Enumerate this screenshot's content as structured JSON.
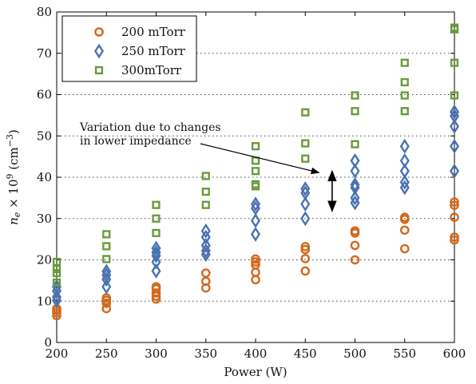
{
  "chart_data": {
    "type": "scatter",
    "title": "",
    "xlabel": "Power (W)",
    "ylabel": {
      "base": "n",
      "sub": "e",
      "mid": " × 10",
      "sup": "9",
      "unit_open": " (cm",
      "unit_sup": "−3",
      "unit_close": ")"
    },
    "xlim": [
      200,
      600
    ],
    "ylim": [
      0,
      80
    ],
    "x_ticks": [
      "200",
      "250",
      "300",
      "350",
      "400",
      "450",
      "500",
      "550",
      "600"
    ],
    "y_ticks": [
      "0",
      "10",
      "20",
      "30",
      "40",
      "50",
      "60",
      "70",
      "80"
    ],
    "grid": "horizontal-dotted",
    "legend_position": "top-left",
    "series": [
      {
        "name": "200 mTorr",
        "marker": "circle",
        "color": "#d2691e",
        "points": [
          [
            200,
            6.5
          ],
          [
            200,
            7.2
          ],
          [
            200,
            7.8
          ],
          [
            200,
            8.2
          ],
          [
            250,
            8.2
          ],
          [
            250,
            9.5
          ],
          [
            250,
            10.2
          ],
          [
            250,
            10.8
          ],
          [
            300,
            10.5
          ],
          [
            300,
            11.2
          ],
          [
            300,
            12.0
          ],
          [
            300,
            13.0
          ],
          [
            300,
            13.5
          ],
          [
            350,
            13.2
          ],
          [
            350,
            14.8
          ],
          [
            350,
            16.8
          ],
          [
            400,
            15.2
          ],
          [
            400,
            17.0
          ],
          [
            400,
            18.8
          ],
          [
            400,
            19.5
          ],
          [
            400,
            20.2
          ],
          [
            450,
            17.3
          ],
          [
            450,
            20.3
          ],
          [
            450,
            22.5
          ],
          [
            450,
            23.2
          ],
          [
            500,
            20.0
          ],
          [
            500,
            23.5
          ],
          [
            500,
            26.5
          ],
          [
            500,
            27.0
          ],
          [
            550,
            22.7
          ],
          [
            550,
            27.2
          ],
          [
            550,
            29.8
          ],
          [
            550,
            30.3
          ],
          [
            600,
            24.8
          ],
          [
            600,
            25.5
          ],
          [
            600,
            30.3
          ],
          [
            600,
            33.2
          ],
          [
            600,
            34.0
          ]
        ]
      },
      {
        "name": "250 mTorr",
        "marker": "diamond",
        "color": "#4a72b0",
        "points": [
          [
            200,
            10.2
          ],
          [
            200,
            11.0
          ],
          [
            200,
            12.5
          ],
          [
            200,
            13.5
          ],
          [
            250,
            13.5
          ],
          [
            250,
            15.3
          ],
          [
            250,
            16.3
          ],
          [
            250,
            17.2
          ],
          [
            300,
            17.3
          ],
          [
            300,
            19.5
          ],
          [
            300,
            21.0
          ],
          [
            300,
            21.8
          ],
          [
            300,
            22.8
          ],
          [
            350,
            21.3
          ],
          [
            350,
            22.2
          ],
          [
            350,
            23.5
          ],
          [
            350,
            25.5
          ],
          [
            350,
            27.0
          ],
          [
            400,
            26.2
          ],
          [
            400,
            29.5
          ],
          [
            400,
            32.5
          ],
          [
            400,
            33.5
          ],
          [
            450,
            30.0
          ],
          [
            450,
            33.5
          ],
          [
            450,
            36.2
          ],
          [
            450,
            37.2
          ],
          [
            500,
            33.8
          ],
          [
            500,
            35.0
          ],
          [
            500,
            37.5
          ],
          [
            500,
            38.2
          ],
          [
            500,
            41.5
          ],
          [
            500,
            44.0
          ],
          [
            550,
            37.5
          ],
          [
            550,
            38.8
          ],
          [
            550,
            41.5
          ],
          [
            550,
            44.0
          ],
          [
            550,
            47.5
          ],
          [
            600,
            41.5
          ],
          [
            600,
            47.5
          ],
          [
            600,
            52.3
          ],
          [
            600,
            54.8
          ],
          [
            600,
            55.8
          ]
        ]
      },
      {
        "name": "300mTorr",
        "marker": "square",
        "color": "#6a9a3a",
        "points": [
          [
            200,
            14.5
          ],
          [
            200,
            16.8
          ],
          [
            200,
            17.8
          ],
          [
            200,
            19.5
          ],
          [
            250,
            20.2
          ],
          [
            250,
            23.3
          ],
          [
            250,
            26.2
          ],
          [
            300,
            26.5
          ],
          [
            300,
            30.0
          ],
          [
            300,
            33.3
          ],
          [
            350,
            33.3
          ],
          [
            350,
            36.5
          ],
          [
            350,
            40.3
          ],
          [
            400,
            37.8
          ],
          [
            400,
            38.3
          ],
          [
            400,
            41.5
          ],
          [
            400,
            44.0
          ],
          [
            400,
            47.5
          ],
          [
            450,
            44.5
          ],
          [
            450,
            48.2
          ],
          [
            450,
            55.7
          ],
          [
            500,
            48.0
          ],
          [
            500,
            56.0
          ],
          [
            500,
            59.8
          ],
          [
            550,
            56.0
          ],
          [
            550,
            59.8
          ],
          [
            550,
            63.0
          ],
          [
            550,
            67.7
          ],
          [
            600,
            59.8
          ],
          [
            600,
            67.7
          ],
          [
            600,
            75.8
          ],
          [
            600,
            76.2
          ]
        ]
      }
    ],
    "annotation": {
      "lines": [
        "Variation due to changes",
        "in lower impedance"
      ],
      "arrow_target": [
        467,
        41.5
      ],
      "double_arrow": {
        "x": 477,
        "y_top": 41.5,
        "y_bottom": 31.8
      }
    }
  }
}
